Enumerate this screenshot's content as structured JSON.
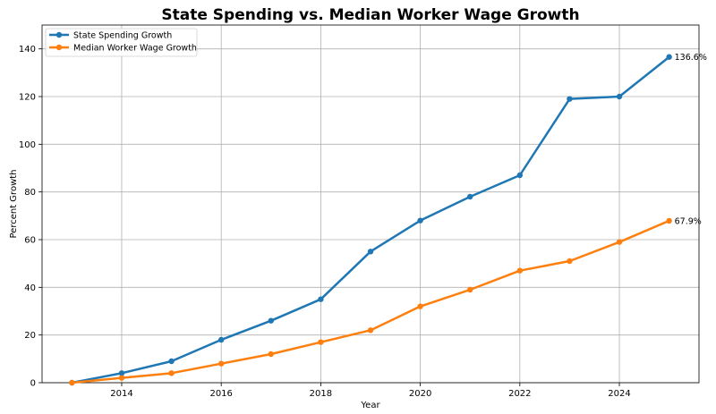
{
  "chart_data": {
    "type": "line",
    "title": "State Spending vs. Median Worker Wage Growth",
    "xlabel": "Year",
    "ylabel": "Percent Growth",
    "x": [
      2013,
      2014,
      2015,
      2016,
      2017,
      2018,
      2019,
      2020,
      2021,
      2022,
      2023,
      2024,
      2025
    ],
    "series": [
      {
        "name": "State Spending Growth",
        "color": "#1f77b4",
        "values": [
          0,
          4,
          9,
          18,
          26,
          35,
          55,
          68,
          78,
          87,
          119,
          120,
          136.6
        ],
        "end_label": "136.6%"
      },
      {
        "name": "Median Worker Wage Growth",
        "color": "#ff7f0e",
        "values": [
          0,
          2,
          4,
          8,
          12,
          17,
          22,
          32,
          39,
          47,
          51,
          59,
          67.9
        ],
        "end_label": "67.9%"
      }
    ],
    "xlim": [
      2012.4,
      2025.6
    ],
    "ylim": [
      0,
      150
    ],
    "xticks": [
      "2014",
      "2016",
      "2018",
      "2020",
      "2022",
      "2024"
    ],
    "yticks": [
      "0",
      "20",
      "40",
      "60",
      "80",
      "100",
      "120",
      "140"
    ],
    "grid": true,
    "legend_position": "top-left"
  }
}
